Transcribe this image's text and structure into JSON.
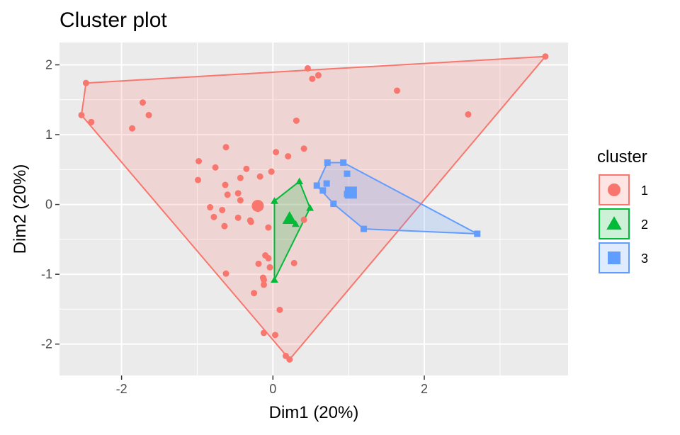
{
  "chart_data": {
    "type": "scatter",
    "title": "Cluster plot",
    "xlabel": "Dim1 (20%)",
    "ylabel": "Dim2 (20%)",
    "xlim": [
      -2.82,
      3.9
    ],
    "ylim": [
      -2.45,
      2.32
    ],
    "xticks": [
      -2,
      0,
      2
    ],
    "yticks": [
      -2,
      -1,
      0,
      1,
      2
    ],
    "xtick_labels": [
      "-2",
      "0",
      "2"
    ],
    "ytick_labels": [
      "-2",
      "-1",
      "0",
      "1",
      "2"
    ],
    "grid": true,
    "legend": {
      "title": "cluster",
      "position": "right",
      "labels": [
        "1",
        "2",
        "3"
      ]
    },
    "series": [
      {
        "name": "1",
        "color": "#F8766D",
        "marker": "circle",
        "points": [
          [
            3.6,
            2.12
          ],
          [
            0.46,
            1.95
          ],
          [
            0.6,
            1.85
          ],
          [
            0.52,
            1.8
          ],
          [
            -2.47,
            1.74
          ],
          [
            1.64,
            1.63
          ],
          [
            -1.72,
            1.46
          ],
          [
            -1.64,
            1.28
          ],
          [
            2.58,
            1.29
          ],
          [
            -2.53,
            1.28
          ],
          [
            -2.4,
            1.18
          ],
          [
            0.31,
            1.2
          ],
          [
            -1.86,
            1.09
          ],
          [
            -0.62,
            0.82
          ],
          [
            0.41,
            0.8
          ],
          [
            0.04,
            0.75
          ],
          [
            0.2,
            0.69
          ],
          [
            -0.98,
            0.62
          ],
          [
            -0.76,
            0.53
          ],
          [
            -0.35,
            0.51
          ],
          [
            -0.02,
            0.47
          ],
          [
            -0.43,
            0.38
          ],
          [
            -0.17,
            0.4
          ],
          [
            -0.99,
            0.35
          ],
          [
            -0.63,
            0.28
          ],
          [
            -0.46,
            0.16
          ],
          [
            -0.6,
            0.14
          ],
          [
            -0.43,
            0.06
          ],
          [
            -0.83,
            -0.04
          ],
          [
            -0.67,
            -0.08
          ],
          [
            -0.78,
            -0.18
          ],
          [
            -0.46,
            -0.19
          ],
          [
            -0.3,
            -0.23
          ],
          [
            -0.29,
            -0.25
          ],
          [
            -0.64,
            -0.31
          ],
          [
            -0.06,
            -0.33
          ],
          [
            0.41,
            -0.22
          ],
          [
            -0.1,
            -0.73
          ],
          [
            -0.06,
            -0.77
          ],
          [
            -0.19,
            -0.85
          ],
          [
            0.28,
            -0.84
          ],
          [
            -0.04,
            -0.9
          ],
          [
            -0.62,
            -0.99
          ],
          [
            -0.13,
            -1.05
          ],
          [
            -0.12,
            -1.08
          ],
          [
            -0.12,
            -1.15
          ],
          [
            -0.25,
            -1.27
          ],
          [
            0.09,
            -1.51
          ],
          [
            -0.12,
            -1.84
          ],
          [
            0.03,
            -1.87
          ],
          [
            0.17,
            -2.17
          ],
          [
            0.22,
            -2.22
          ]
        ],
        "centroid": [
          -0.2,
          -0.02
        ],
        "hull": [
          [
            3.6,
            2.12
          ],
          [
            -2.47,
            1.74
          ],
          [
            -2.53,
            1.28
          ],
          [
            0.22,
            -2.22
          ]
        ]
      },
      {
        "name": "2",
        "color": "#00BA38",
        "marker": "triangle",
        "points": [
          [
            0.35,
            0.33
          ],
          [
            0.02,
            0.05
          ],
          [
            0.49,
            -0.05
          ],
          [
            0.3,
            -0.28
          ],
          [
            0.02,
            -1.08
          ]
        ],
        "centroid": [
          0.22,
          -0.2
        ],
        "hull": [
          [
            0.35,
            0.33
          ],
          [
            0.49,
            -0.05
          ],
          [
            0.02,
            -1.08
          ],
          [
            0.02,
            0.05
          ]
        ]
      },
      {
        "name": "3",
        "color": "#619CFF",
        "marker": "square",
        "points": [
          [
            0.72,
            0.6
          ],
          [
            0.93,
            0.6
          ],
          [
            0.98,
            0.44
          ],
          [
            0.71,
            0.3
          ],
          [
            0.58,
            0.27
          ],
          [
            0.66,
            0.2
          ],
          [
            0.98,
            0.15
          ],
          [
            0.8,
            0.01
          ],
          [
            1.2,
            -0.35
          ],
          [
            2.7,
            -0.42
          ]
        ],
        "centroid": [
          1.03,
          0.17
        ],
        "hull": [
          [
            0.72,
            0.6
          ],
          [
            0.93,
            0.6
          ],
          [
            2.7,
            -0.42
          ],
          [
            1.2,
            -0.35
          ],
          [
            0.8,
            0.01
          ],
          [
            0.58,
            0.27
          ]
        ]
      }
    ]
  }
}
